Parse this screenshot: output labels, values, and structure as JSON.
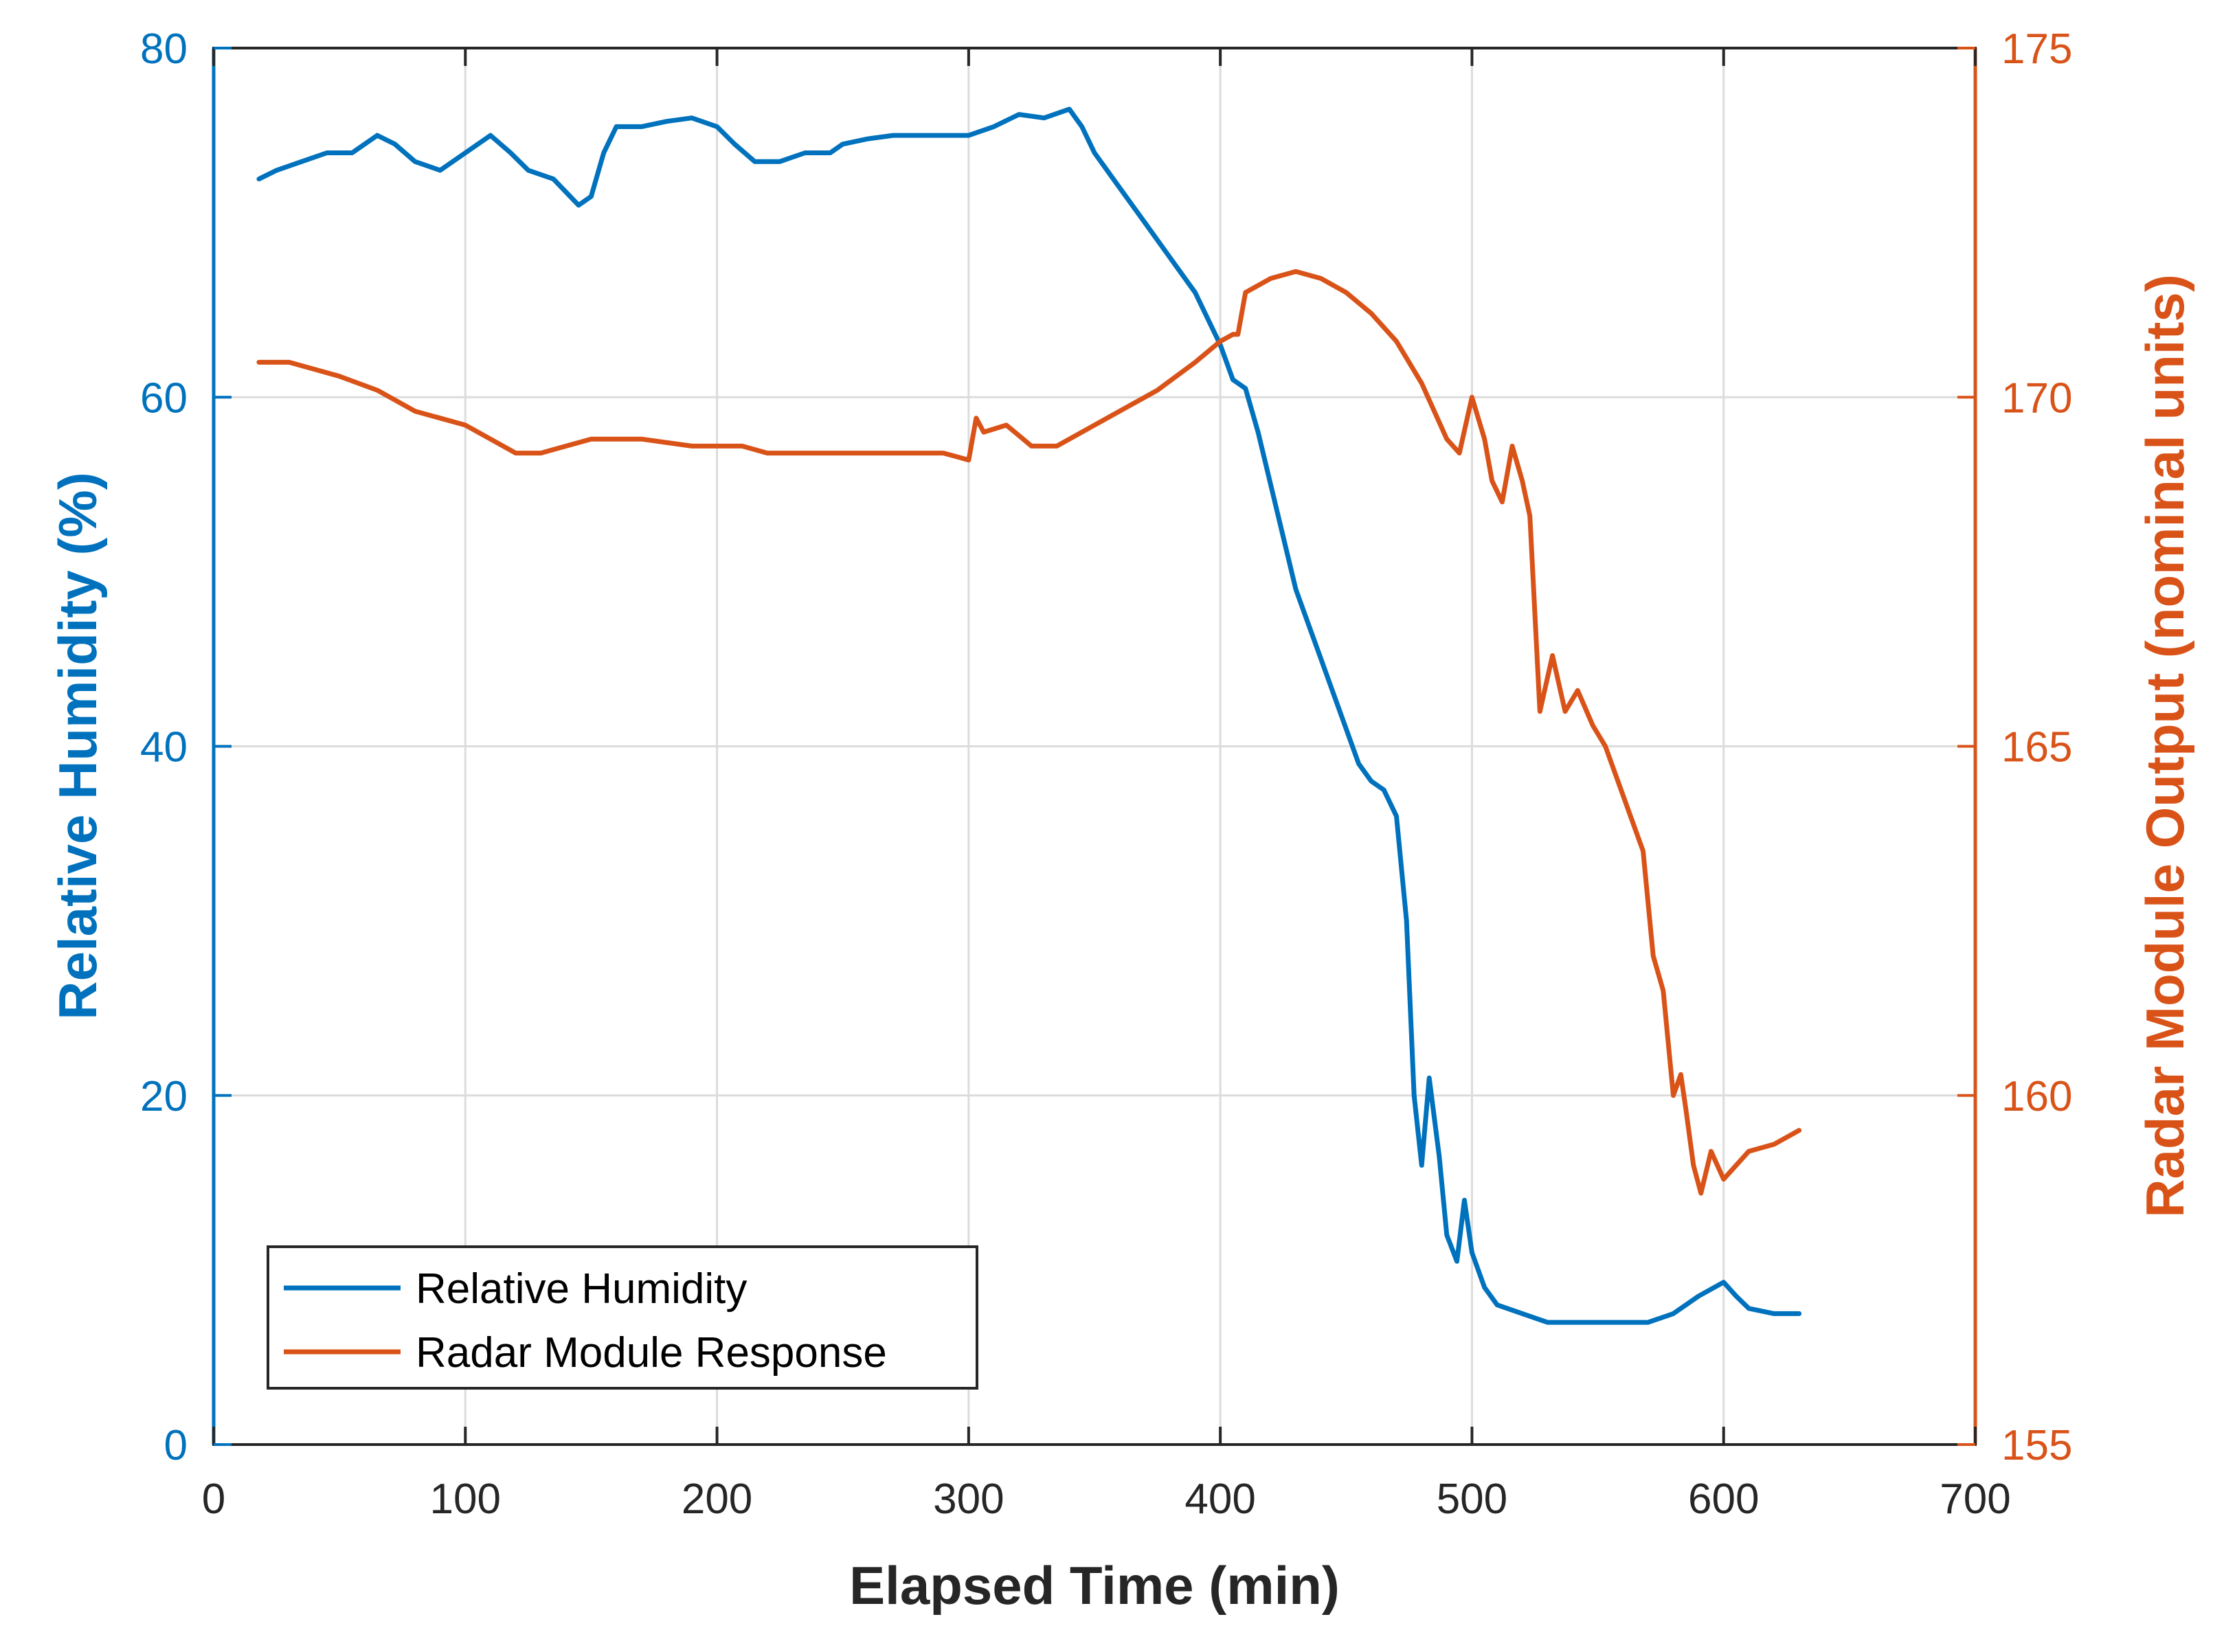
{
  "chart_data": {
    "type": "line",
    "title": "",
    "xlabel": "Elapsed Time (min)",
    "ylabel": "Relative Humidity (%)",
    "ylabel_right": "Radar Module Output (nominal units)",
    "xlim": [
      0,
      700
    ],
    "ylim": [
      0,
      80
    ],
    "ylim_right": [
      155,
      175
    ],
    "x_ticks": [
      "0",
      "100",
      "200",
      "300",
      "400",
      "500",
      "600",
      "700"
    ],
    "y_ticks": [
      "0",
      "20",
      "40",
      "60",
      "80"
    ],
    "y_ticks_right": [
      "155",
      "160",
      "165",
      "170",
      "175"
    ],
    "grid": true,
    "legend_position": "bottom-left",
    "colors": {
      "humidity": "#0072BD",
      "radar": "#D95319",
      "grid": "#DCDCDC",
      "axis": "#262626"
    },
    "series": [
      {
        "name": "Relative Humidity",
        "axis": "left",
        "color": "#0072BD",
        "x": [
          18,
          25,
          35,
          45,
          55,
          65,
          72,
          80,
          90,
          100,
          110,
          118,
          125,
          135,
          145,
          150,
          155,
          160,
          170,
          180,
          190,
          200,
          207,
          215,
          225,
          235,
          245,
          250,
          260,
          270,
          280,
          290,
          300,
          310,
          320,
          330,
          340,
          345,
          350,
          360,
          370,
          380,
          390,
          395,
          400,
          405,
          410,
          415,
          420,
          425,
          430,
          435,
          440,
          445,
          450,
          455,
          460,
          465,
          470,
          474,
          477,
          480,
          483,
          487,
          490,
          494,
          497,
          500,
          505,
          510,
          520,
          530,
          540,
          550,
          560,
          570,
          580,
          590,
          600,
          605,
          610,
          620,
          630
        ],
        "y": [
          72.5,
          73,
          73.5,
          74,
          74,
          75,
          74.5,
          73.5,
          73,
          74,
          75,
          74,
          73,
          72.5,
          71,
          71.5,
          74,
          75.5,
          75.5,
          75.8,
          76,
          75.5,
          74.5,
          73.5,
          73.5,
          74,
          74,
          74.5,
          74.8,
          75,
          75,
          75,
          75,
          75.5,
          76.2,
          76,
          76.5,
          75.5,
          74,
          72,
          70,
          68,
          66,
          64.5,
          63,
          61,
          60.5,
          58,
          55,
          52,
          49,
          47,
          45,
          43,
          41,
          39,
          38,
          37.5,
          36,
          30,
          20,
          16,
          21,
          16.5,
          12,
          10.5,
          14,
          11,
          9,
          8,
          7.5,
          7,
          7,
          7,
          7,
          7,
          7.5,
          8.5,
          9.3,
          8.5,
          7.8,
          7.5,
          7.5
        ]
      },
      {
        "name": "Radar Module Response",
        "axis": "right",
        "color": "#D95319",
        "x": [
          18,
          30,
          50,
          65,
          80,
          100,
          110,
          120,
          130,
          140,
          150,
          170,
          190,
          210,
          220,
          230,
          240,
          260,
          280,
          290,
          300,
          303,
          306,
          315,
          325,
          335,
          345,
          360,
          375,
          390,
          400,
          405,
          407,
          410,
          420,
          430,
          440,
          450,
          460,
          470,
          480,
          485,
          490,
          495,
          500,
          505,
          508,
          512,
          516,
          520,
          523,
          527,
          532,
          537,
          542,
          548,
          553,
          558,
          563,
          568,
          572,
          576,
          580,
          583,
          585,
          588,
          591,
          595,
          600,
          605,
          610,
          620,
          630
        ],
        "y": [
          170.5,
          170.5,
          170.3,
          170.1,
          169.8,
          169.6,
          169.4,
          169.2,
          169.2,
          169.3,
          169.4,
          169.4,
          169.3,
          169.3,
          169.2,
          169.2,
          169.2,
          169.2,
          169.2,
          169.2,
          169.1,
          169.7,
          169.5,
          169.6,
          169.3,
          169.3,
          169.5,
          169.8,
          170.1,
          170.5,
          170.8,
          170.9,
          170.9,
          171.5,
          171.7,
          171.8,
          171.7,
          171.5,
          171.2,
          170.8,
          170.2,
          169.8,
          169.4,
          169.2,
          170.0,
          169.4,
          168.8,
          168.5,
          169.3,
          168.8,
          168.3,
          165.5,
          166.3,
          165.5,
          165.8,
          165.3,
          165.0,
          164.5,
          164.0,
          163.5,
          162.0,
          161.5,
          160.0,
          160.3,
          159.8,
          159.0,
          158.6,
          159.2,
          158.8,
          159.0,
          159.2,
          159.3,
          159.5
        ]
      }
    ]
  }
}
